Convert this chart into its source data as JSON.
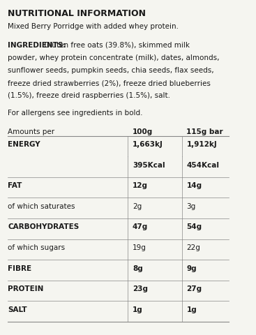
{
  "title": "NUTRITIONAL INFORMATION",
  "subtitle": "Mixed Berry Porridge with added whey protein.",
  "ingredients_label": "INGREDIENTS:",
  "ingredients_text": " Gluten free oats (39.8%), skimmed milk powder, whey protein concentrate (milk), dates, almonds, sunflower seeds, pumpkin seeds, chia seeds, flax seeds, freeze dried strawberries (2%), freeze dried blueberries (1.5%), freeze dreid raspberries (1.5%), salt.",
  "allergen_note": "For allergens see ingredients in bold.",
  "col_header_left": "Amounts per",
  "col_header_mid": "100g",
  "col_header_right": "115g bar",
  "rows": [
    {
      "label": "ENERGY",
      "bold_label": true,
      "mid": "1,663kJ",
      "right": "1,912kJ",
      "bold_vals": true,
      "top_border": true
    },
    {
      "label": "",
      "bold_label": false,
      "mid": "395Kcal",
      "right": "454Kcal",
      "bold_vals": true,
      "top_border": false
    },
    {
      "label": "FAT",
      "bold_label": true,
      "mid": "12g",
      "right": "14g",
      "bold_vals": true,
      "top_border": true
    },
    {
      "label": "of which saturates",
      "bold_label": false,
      "mid": "2g",
      "right": "3g",
      "bold_vals": false,
      "top_border": true
    },
    {
      "label": "CARBOHYDRATES",
      "bold_label": true,
      "mid": "47g",
      "right": "54g",
      "bold_vals": true,
      "top_border": true
    },
    {
      "label": "of which sugars",
      "bold_label": false,
      "mid": "19g",
      "right": "22g",
      "bold_vals": false,
      "top_border": true
    },
    {
      "label": "FIBRE",
      "bold_label": true,
      "mid": "8g",
      "right": "9g",
      "bold_vals": true,
      "top_border": true
    },
    {
      "label": "PROTEIN",
      "bold_label": true,
      "mid": "23g",
      "right": "27g",
      "bold_vals": true,
      "top_border": true
    },
    {
      "label": "SALT",
      "bold_label": true,
      "mid": "1g",
      "right": "1g",
      "bold_vals": true,
      "top_border": true
    }
  ],
  "bg_color": "#f5f5f0",
  "text_color": "#1a1a1a",
  "line_color": "#888888",
  "font_size_title": 9,
  "font_size_body": 7.5,
  "font_size_table": 7.5
}
